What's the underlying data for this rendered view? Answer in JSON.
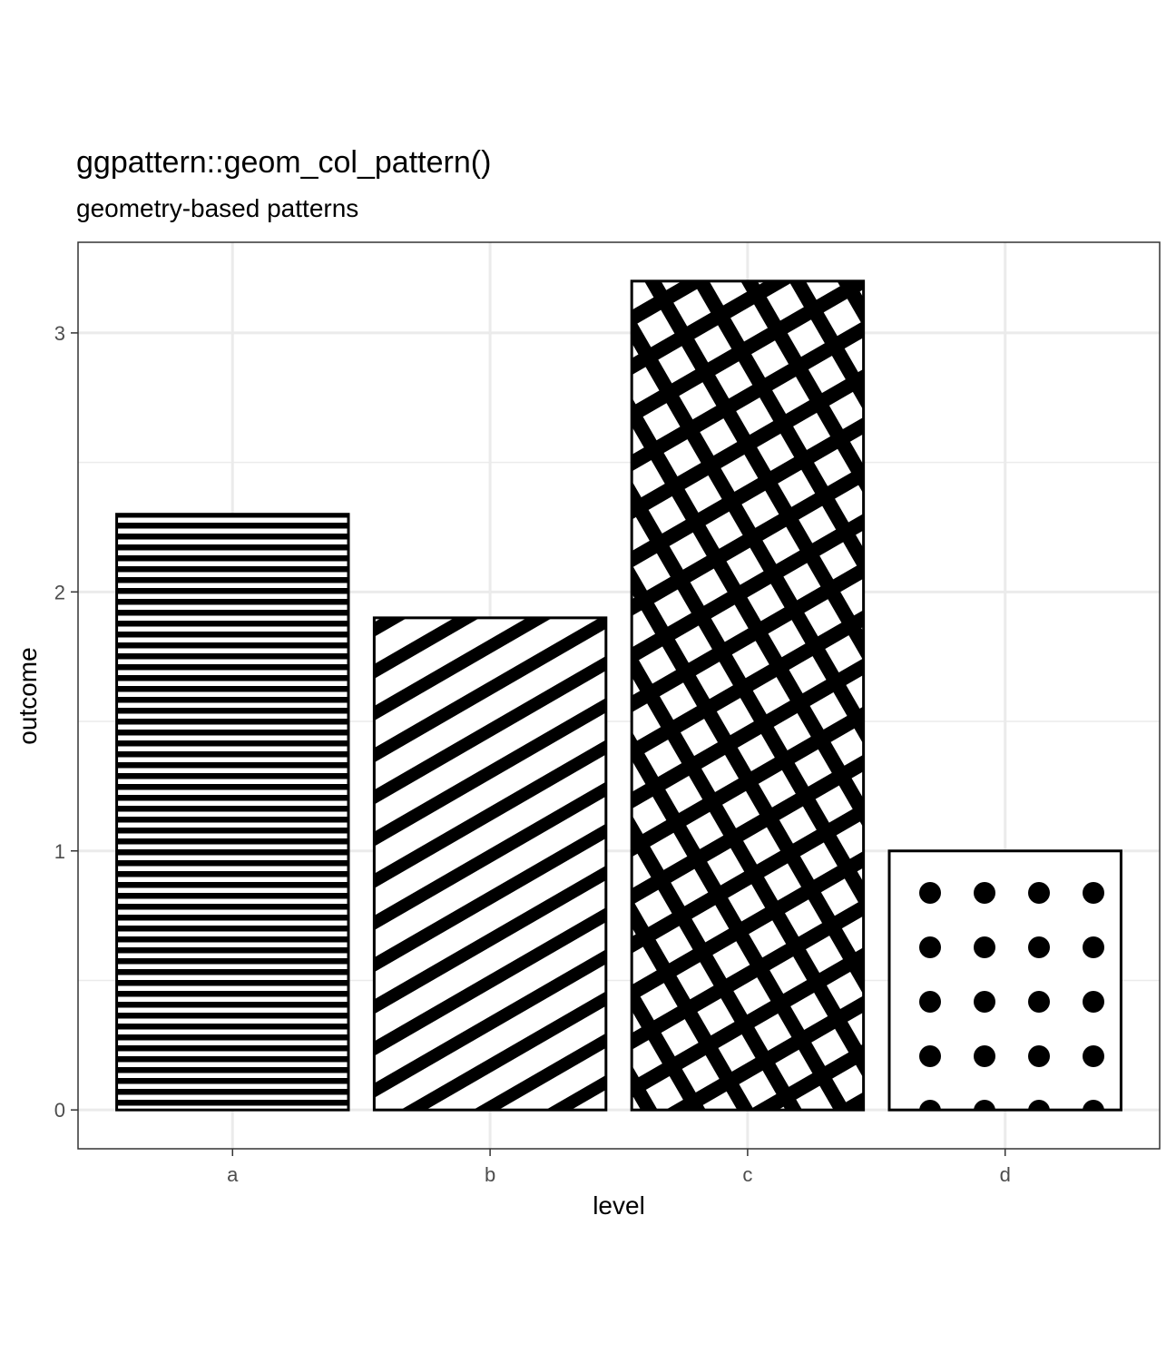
{
  "chart_data": {
    "type": "bar",
    "title": "ggpattern::geom_col_pattern()",
    "subtitle": "geometry-based patterns",
    "xlabel": "level",
    "ylabel": "outcome",
    "categories": [
      "a",
      "b",
      "c",
      "d"
    ],
    "values": [
      2.3,
      1.9,
      3.2,
      1.0
    ],
    "patterns": [
      "stripe-horizontal",
      "stripe-diagonal",
      "crosshatch",
      "circle"
    ],
    "y_ticks": [
      0,
      1,
      2,
      3
    ],
    "ylim": [
      -0.15,
      3.35
    ],
    "grid": true,
    "legend": "none",
    "colors": {
      "bar_fill": "#ffffff",
      "pattern": "#000000",
      "grid": "#ebebeb",
      "panel_border": "#333333",
      "tick_text": "#4d4d4d"
    }
  }
}
